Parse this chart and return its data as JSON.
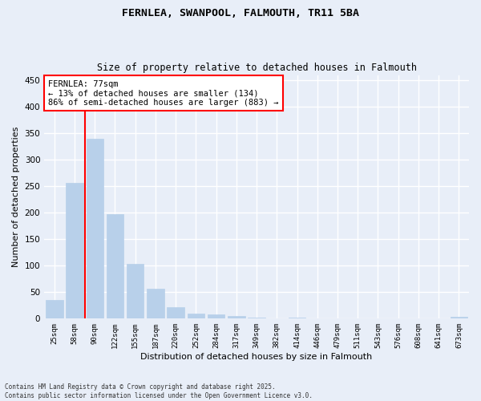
{
  "title1": "FERNLEA, SWANPOOL, FALMOUTH, TR11 5BA",
  "title2": "Size of property relative to detached houses in Falmouth",
  "xlabel": "Distribution of detached houses by size in Falmouth",
  "ylabel": "Number of detached properties",
  "categories": [
    "25sqm",
    "58sqm",
    "90sqm",
    "122sqm",
    "155sqm",
    "187sqm",
    "220sqm",
    "252sqm",
    "284sqm",
    "317sqm",
    "349sqm",
    "382sqm",
    "414sqm",
    "446sqm",
    "479sqm",
    "511sqm",
    "543sqm",
    "576sqm",
    "608sqm",
    "641sqm",
    "673sqm"
  ],
  "values": [
    35,
    257,
    340,
    197,
    103,
    57,
    21,
    9,
    8,
    5,
    2,
    0,
    2,
    0,
    0,
    0,
    0,
    0,
    0,
    0,
    3
  ],
  "bar_color": "#b8d0ea",
  "bar_edgecolor": "#b8d0ea",
  "vline_x": 1.5,
  "vline_color": "red",
  "annotation_text": "FERNLEA: 77sqm\n← 13% of detached houses are smaller (134)\n86% of semi-detached houses are larger (883) →",
  "annotation_box_edgecolor": "red",
  "annotation_fontsize": 7.5,
  "ylim": [
    0,
    460
  ],
  "yticks": [
    0,
    50,
    100,
    150,
    200,
    250,
    300,
    350,
    400,
    450
  ],
  "background_color": "#e8eef8",
  "grid_color": "white",
  "footer": "Contains HM Land Registry data © Crown copyright and database right 2025.\nContains public sector information licensed under the Open Government Licence v3.0."
}
